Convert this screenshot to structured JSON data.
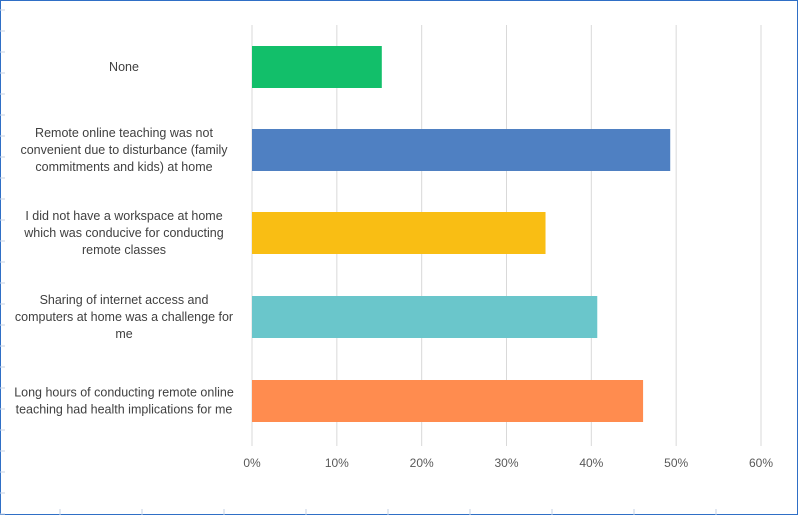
{
  "chart_data": {
    "type": "bar",
    "orientation": "horizontal",
    "categories": [
      "None",
      "Remote online teaching was not convenient due to disturbance (family commitments and kids) at home",
      "I did not have a workspace at home which was conducive for conducting remote classes",
      "Sharing of internet access and computers at home was a challenge for me",
      "Long hours of conducting remote online teaching had health implications for me"
    ],
    "category_lines": [
      [
        "None"
      ],
      [
        "Remote online teaching was not",
        "convenient due to disturbance (family",
        "commitments and kids) at home"
      ],
      [
        "I did not have a workspace at home",
        "which was conducive for conducting",
        "remote classes"
      ],
      [
        "Sharing of internet access and",
        "computers at home was a challenge for",
        "me"
      ],
      [
        "Long hours of conducting remote online",
        "teaching had health implications for me"
      ]
    ],
    "values": [
      15.3,
      49.3,
      34.6,
      40.7,
      46.1
    ],
    "colors": [
      "#12bf6a",
      "#4f80c2",
      "#f9be14",
      "#6ac6cb",
      "#ff8c4f"
    ],
    "xlim": [
      0,
      60
    ],
    "xticks": [
      "0%",
      "10%",
      "20%",
      "30%",
      "40%",
      "50%",
      "60%"
    ],
    "grid": true,
    "title": "",
    "xlabel": "",
    "ylabel": ""
  }
}
